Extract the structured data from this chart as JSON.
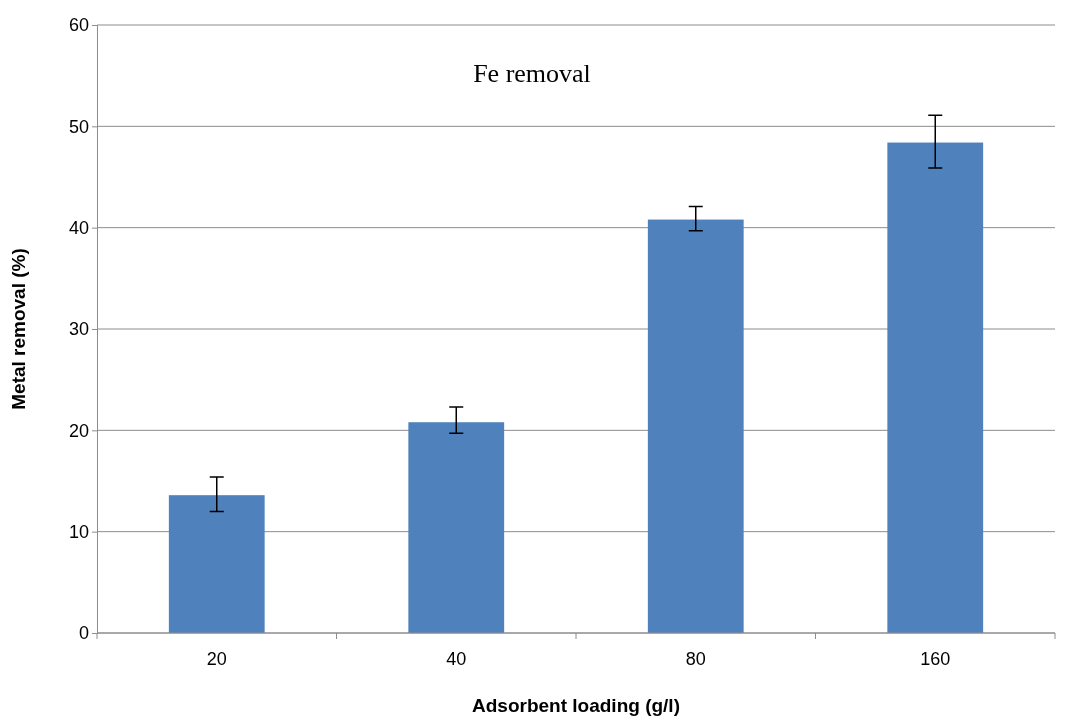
{
  "chart_data": {
    "type": "bar",
    "title": "Fe removal",
    "xlabel": "Adsorbent loading (g/l)",
    "ylabel": "Metal removal (%)",
    "categories": [
      "20",
      "40",
      "80",
      "160"
    ],
    "values": [
      13.6,
      20.8,
      40.8,
      48.4
    ],
    "errors": [
      [
        12.0,
        15.4
      ],
      [
        19.7,
        22.3
      ],
      [
        39.7,
        42.1
      ],
      [
        45.9,
        51.1
      ]
    ],
    "color": "#4f81bd",
    "ylim": [
      0,
      60
    ],
    "yticks": [
      0,
      10,
      20,
      30,
      40,
      50,
      60
    ],
    "grid": "y"
  }
}
